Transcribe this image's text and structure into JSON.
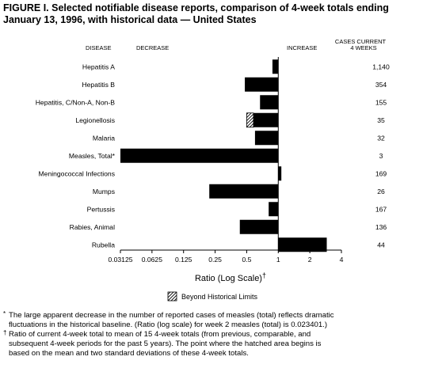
{
  "title": {
    "line1": "FIGURE I. Selected notifiable disease reports, comparison of 4-week totals ending",
    "line2": "January 13, 1996, with historical data — United States"
  },
  "headers": {
    "disease": "DISEASE",
    "decrease": "DECREASE",
    "increase": "INCREASE",
    "cases_line1": "CASES CURRENT",
    "cases_line2": "4 WEEKS"
  },
  "legend": {
    "label": "Beyond Historical Limits"
  },
  "footnotes": {
    "star_symbol": "*",
    "star_text": "The large apparent decrease in the number of reported cases of measles (total) reflects dramatic",
    "star_text2": "fluctuations in the historical baseline. (Ratio (log scale) for week 2 measles (total) is 0.023401.)",
    "dagger_symbol": "†",
    "dagger_text": "Ratio of current 4-week total to mean of 15 4-week totals (from previous, comparable, and",
    "dagger_text2": "subsequent 4-week periods for the past 5 years). The point where the hatched area begins is",
    "dagger_text3": "based on the mean and two standard deviations of these 4-week totals."
  },
  "chart_data": {
    "type": "bar",
    "orientation": "horizontal",
    "scale": "log2",
    "xlabel": "Ratio (Log Scale)",
    "xlabel_mark": "†",
    "xlim": [
      0.03125,
      4
    ],
    "baseline": 1,
    "ticks": [
      0.03125,
      0.0625,
      0.125,
      0.25,
      0.5,
      1,
      2,
      4
    ],
    "tick_labels": [
      "0.03125",
      "0.0625",
      "0.125",
      "0.25",
      "0.5",
      "1",
      "2",
      "4"
    ],
    "categories": [
      "Hepatitis A",
      "Hepatitis B",
      "Hepatitis, C/Non-A, Non-B",
      "Legionellosis",
      "Malaria",
      "Measles, Total*",
      "Meningococcal Infections",
      "Mumps",
      "Pertussis",
      "Rabies, Animal",
      "Rubella"
    ],
    "values": [
      0.88,
      0.48,
      0.67,
      0.5,
      0.6,
      0.023401,
      1.07,
      0.22,
      0.81,
      0.43,
      2.9
    ],
    "hatch_start": [
      null,
      null,
      null,
      0.58,
      null,
      null,
      null,
      null,
      null,
      null,
      null
    ],
    "cases": [
      "1,140",
      "354",
      "155",
      "35",
      "32",
      "3",
      "169",
      "26",
      "167",
      "136",
      "44"
    ],
    "colors": {
      "bar": "#000000",
      "hatch_fill": "#ffffff"
    }
  }
}
